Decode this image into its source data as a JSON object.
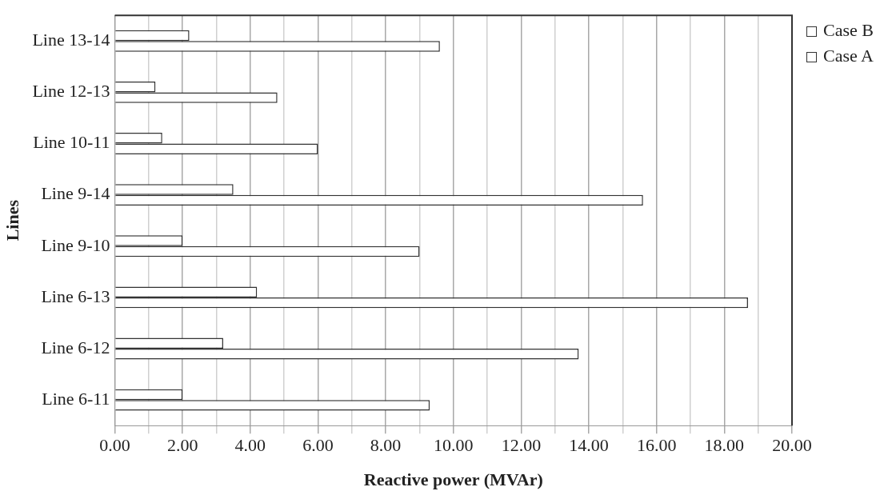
{
  "chart_data": {
    "type": "bar",
    "orientation": "horizontal",
    "xlabel": "Reactive power (MVAr)",
    "ylabel": "Lines",
    "categories": [
      "Line 13-14",
      "Line 12-13",
      "Line 10-11",
      "Line 9-14",
      "Line 9-10",
      "Line 6-13",
      "Line 6-12",
      "Line 6-11"
    ],
    "series": [
      {
        "name": "Case B",
        "color": "#ffffff",
        "values": [
          2.2,
          1.2,
          1.4,
          3.5,
          2.0,
          4.2,
          3.2,
          2.0
        ]
      },
      {
        "name": "Case A",
        "color": "#ffffff",
        "values": [
          9.6,
          4.8,
          6.0,
          15.6,
          9.0,
          18.7,
          13.7,
          9.3
        ]
      }
    ],
    "xlim": [
      0,
      20
    ],
    "xticks": [
      "0.00",
      {
        "value": 1,
        "label": null
      },
      {
        "value": 2,
        "label": "2.00"
      },
      {
        "value": 3,
        "label": null
      },
      {
        "value": 4,
        "label": "4.00"
      },
      {
        "value": 5,
        "label": null
      },
      {
        "value": 6,
        "label": "6.00"
      },
      {
        "value": 7,
        "label": null
      },
      {
        "value": 8,
        "label": "8.00"
      },
      {
        "value": 9,
        "label": null
      },
      {
        "value": 10,
        "label": "10.00"
      },
      {
        "value": 11,
        "label": null
      },
      {
        "value": 12,
        "label": "12.00"
      },
      {
        "value": 13,
        "label": null
      },
      {
        "value": 14,
        "label": "14.00"
      },
      {
        "value": 15,
        "label": null
      },
      {
        "value": 16,
        "label": "16.00"
      },
      {
        "value": 17,
        "label": null
      },
      {
        "value": 18,
        "label": "18.00"
      },
      {
        "value": 19,
        "label": null
      },
      {
        "value": 20,
        "label": "20.00"
      }
    ],
    "grid": "x",
    "legend": "right"
  }
}
